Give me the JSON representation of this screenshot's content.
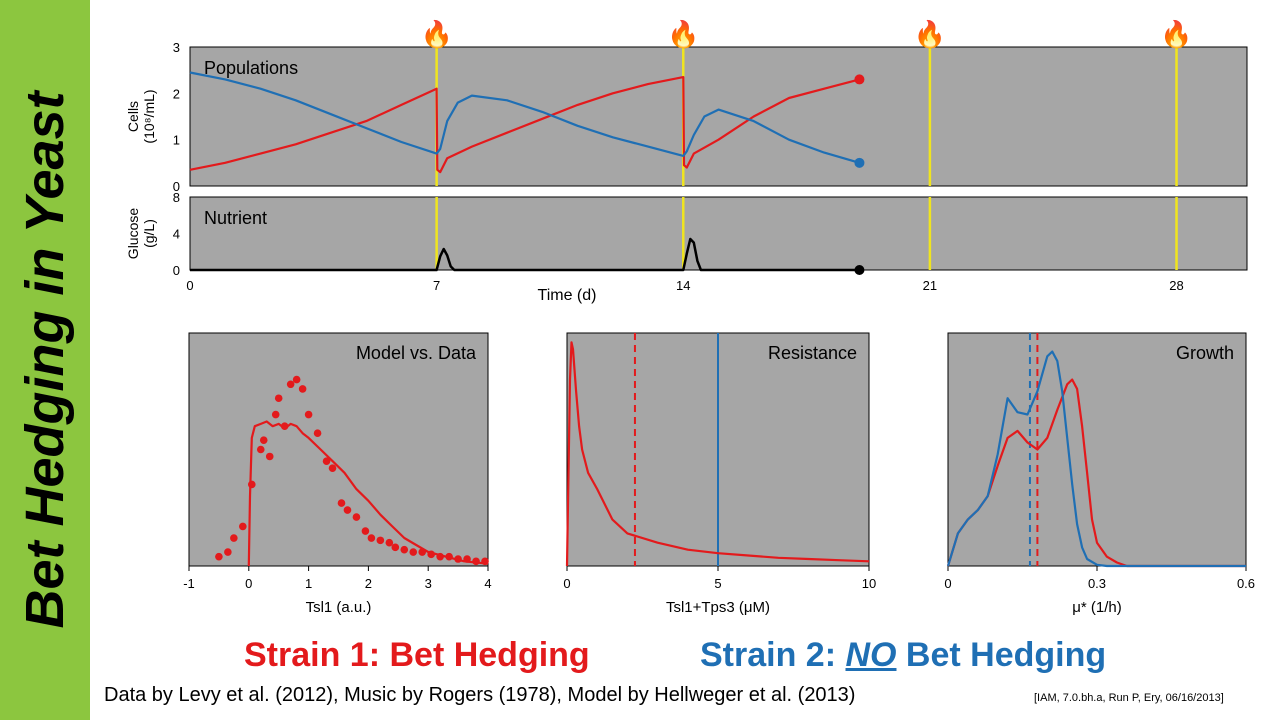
{
  "sidebar": {
    "title": "Bet Hedging in Yeast"
  },
  "colors": {
    "strain1": "#e31a1c",
    "strain2": "#1f6fb4",
    "panel_bg": "#a6a6a6",
    "event_line": "#f0e51e",
    "sidebar": "#8cc63f"
  },
  "icons": {
    "event_marker": "flame-icon",
    "event_glyph": "🔥"
  },
  "chart_data": [
    {
      "id": "populations",
      "type": "line",
      "title": "Populations",
      "ylabel_line1": "Cells",
      "ylabel_line2": "(10⁸/mL)",
      "ylim": [
        0,
        3
      ],
      "yticks": [
        "0",
        "1",
        "2",
        "3"
      ],
      "xlim": [
        0,
        30
      ],
      "events": [
        7,
        14,
        21,
        28
      ],
      "series": [
        {
          "name": "Strain 1",
          "color": "#e31a1c",
          "x": [
            0,
            1,
            2,
            3,
            4,
            5,
            6,
            7,
            7.02,
            7.1,
            7.3,
            8,
            9,
            10,
            11,
            12,
            13,
            14,
            14.02,
            14.1,
            14.3,
            15,
            16,
            17,
            18,
            19
          ],
          "y": [
            0.35,
            0.5,
            0.7,
            0.9,
            1.15,
            1.4,
            1.75,
            2.1,
            0.35,
            0.3,
            0.6,
            0.85,
            1.15,
            1.45,
            1.75,
            2.0,
            2.2,
            2.35,
            0.45,
            0.4,
            0.7,
            1.0,
            1.5,
            1.9,
            2.1,
            2.3
          ]
        },
        {
          "name": "Strain 2",
          "color": "#1f6fb4",
          "x": [
            0,
            1,
            2,
            3,
            4,
            5,
            6,
            7,
            7.1,
            7.3,
            7.6,
            8,
            9,
            10,
            11,
            12,
            13,
            14,
            14.1,
            14.3,
            14.6,
            15,
            16,
            17,
            18,
            19
          ],
          "y": [
            2.45,
            2.3,
            2.1,
            1.85,
            1.55,
            1.25,
            0.95,
            0.7,
            0.8,
            1.4,
            1.8,
            1.95,
            1.85,
            1.6,
            1.3,
            1.05,
            0.85,
            0.65,
            0.75,
            1.1,
            1.5,
            1.65,
            1.4,
            1.0,
            0.72,
            0.5
          ]
        }
      ],
      "endpoints": [
        {
          "x": 19,
          "y": 2.3,
          "color": "#e31a1c"
        },
        {
          "x": 19,
          "y": 0.5,
          "color": "#1f6fb4"
        }
      ]
    },
    {
      "id": "nutrient",
      "type": "line",
      "title": "Nutrient",
      "ylabel_line1": "Glucose",
      "ylabel_line2": "(g/L)",
      "ylim": [
        0,
        8
      ],
      "yticks": [
        "0",
        "4",
        "8"
      ],
      "xlabel": "Time (d)",
      "xlim": [
        0,
        30
      ],
      "xticks": [
        0,
        7,
        14,
        21,
        28
      ],
      "xtick_labels": [
        "0",
        "7",
        "14",
        "21",
        "28"
      ],
      "series": [
        {
          "name": "Glucose",
          "color": "#000000",
          "x": [
            0,
            7.0,
            7.1,
            7.2,
            7.3,
            7.4,
            7.5,
            14.0,
            14.1,
            14.2,
            14.3,
            14.4,
            14.5,
            19
          ],
          "y": [
            0,
            0,
            1.5,
            2.3,
            1.6,
            0.4,
            0,
            0,
            1.8,
            3.4,
            3.0,
            1.0,
            0,
            0
          ]
        }
      ],
      "endpoints": [
        {
          "x": 19,
          "y": 0,
          "color": "#000000"
        }
      ]
    },
    {
      "id": "model-vs-data",
      "type": "scatter",
      "title": "Model vs. Data",
      "xlabel": "Tsl1 (a.u.)",
      "xlim": [
        -1,
        4
      ],
      "ylim": [
        0,
        1
      ],
      "xticks": [
        -1,
        0,
        1,
        2,
        3,
        4
      ],
      "xtick_labels": [
        "-1",
        "0",
        "1",
        "2",
        "3",
        "4"
      ],
      "points": {
        "color": "#e31a1c",
        "x": [
          -0.5,
          -0.35,
          -0.25,
          -0.1,
          0.05,
          0.2,
          0.25,
          0.35,
          0.45,
          0.5,
          0.6,
          0.7,
          0.8,
          0.9,
          1.0,
          1.15,
          1.3,
          1.4,
          1.55,
          1.65,
          1.8,
          1.95,
          2.05,
          2.2,
          2.35,
          2.45,
          2.6,
          2.75,
          2.9,
          3.05,
          3.2,
          3.35,
          3.5,
          3.65,
          3.8,
          3.95
        ],
        "y": [
          0.04,
          0.06,
          0.12,
          0.17,
          0.35,
          0.5,
          0.54,
          0.47,
          0.65,
          0.72,
          0.6,
          0.78,
          0.8,
          0.76,
          0.65,
          0.57,
          0.45,
          0.42,
          0.27,
          0.24,
          0.21,
          0.15,
          0.12,
          0.11,
          0.1,
          0.08,
          0.07,
          0.06,
          0.06,
          0.05,
          0.04,
          0.04,
          0.03,
          0.03,
          0.02,
          0.02
        ]
      },
      "series": [
        {
          "name": "Model",
          "color": "#e31a1c",
          "x": [
            0,
            0.02,
            0.05,
            0.1,
            0.2,
            0.3,
            0.4,
            0.5,
            0.6,
            0.7,
            0.8,
            0.9,
            1.0,
            1.2,
            1.4,
            1.6,
            1.8,
            2.0,
            2.2,
            2.4,
            2.6,
            2.8,
            3.0,
            3.3,
            3.6,
            4.0
          ],
          "y": [
            0,
            0.3,
            0.55,
            0.6,
            0.61,
            0.62,
            0.6,
            0.61,
            0.59,
            0.61,
            0.6,
            0.57,
            0.55,
            0.5,
            0.45,
            0.4,
            0.33,
            0.28,
            0.22,
            0.17,
            0.12,
            0.09,
            0.06,
            0.04,
            0.02,
            0.01
          ]
        }
      ]
    },
    {
      "id": "resistance",
      "type": "line",
      "title": "Resistance",
      "xlabel": "Tsl1+Tps3 (μM)",
      "xlim": [
        0,
        10
      ],
      "ylim": [
        0,
        1
      ],
      "xticks": [
        0,
        5,
        10
      ],
      "xtick_labels": [
        "0",
        "5",
        "10"
      ],
      "series": [
        {
          "name": "Strain 1",
          "color": "#e31a1c",
          "x": [
            0,
            0.05,
            0.1,
            0.15,
            0.2,
            0.3,
            0.4,
            0.5,
            0.7,
            1.0,
            1.5,
            2.0,
            3.0,
            4.0,
            5.0,
            6.0,
            7.0,
            8.0,
            9.0,
            10.0
          ],
          "y": [
            0,
            0.4,
            0.8,
            0.96,
            0.93,
            0.75,
            0.6,
            0.5,
            0.4,
            0.33,
            0.2,
            0.14,
            0.1,
            0.07,
            0.055,
            0.045,
            0.035,
            0.03,
            0.025,
            0.02
          ]
        }
      ],
      "vlines": [
        {
          "x": 2.25,
          "color": "#e31a1c",
          "style": "dashed"
        },
        {
          "x": 5.0,
          "color": "#1f6fb4",
          "style": "solid"
        }
      ]
    },
    {
      "id": "growth",
      "type": "line",
      "title": "Growth",
      "xlabel": "μ* (1/h)",
      "xlim": [
        0,
        0.6
      ],
      "ylim": [
        0,
        1
      ],
      "xticks": [
        0,
        0.3,
        0.6
      ],
      "xtick_labels": [
        "0",
        "0.3",
        "0.6"
      ],
      "series": [
        {
          "name": "Strain 1",
          "color": "#e31a1c",
          "x": [
            0,
            0.02,
            0.04,
            0.06,
            0.08,
            0.1,
            0.12,
            0.14,
            0.16,
            0.18,
            0.2,
            0.22,
            0.24,
            0.25,
            0.26,
            0.27,
            0.28,
            0.29,
            0.3,
            0.32,
            0.34,
            0.36,
            0.4,
            0.6
          ],
          "y": [
            0,
            0.14,
            0.2,
            0.24,
            0.3,
            0.43,
            0.55,
            0.58,
            0.53,
            0.5,
            0.55,
            0.67,
            0.78,
            0.8,
            0.76,
            0.6,
            0.4,
            0.2,
            0.1,
            0.04,
            0.015,
            0,
            0,
            0
          ]
        },
        {
          "name": "Strain 2",
          "color": "#1f6fb4",
          "x": [
            0,
            0.02,
            0.04,
            0.06,
            0.08,
            0.1,
            0.12,
            0.14,
            0.16,
            0.18,
            0.2,
            0.21,
            0.22,
            0.23,
            0.24,
            0.25,
            0.26,
            0.27,
            0.28,
            0.3,
            0.32,
            0.4,
            0.6
          ],
          "y": [
            0,
            0.14,
            0.2,
            0.24,
            0.3,
            0.48,
            0.72,
            0.66,
            0.65,
            0.75,
            0.9,
            0.92,
            0.88,
            0.75,
            0.55,
            0.35,
            0.18,
            0.08,
            0.03,
            0.005,
            0,
            0,
            0
          ]
        }
      ],
      "vlines": [
        {
          "x": 0.165,
          "color": "#1f6fb4",
          "style": "dashed"
        },
        {
          "x": 0.18,
          "color": "#e31a1c",
          "style": "dashed"
        }
      ]
    }
  ],
  "legend": {
    "strain1": "Strain 1: Bet Hedging",
    "strain2_prefix": "Strain 2: ",
    "strain2_no": "NO",
    "strain2_suffix": " Bet Hedging"
  },
  "credits": "Data by Levy et al. (2012), Music by Rogers (1978), Model by Hellweger et al. (2013)",
  "stamp": "[IAM, 7.0.bh.a, Run P, Ery, 06/16/2013]"
}
